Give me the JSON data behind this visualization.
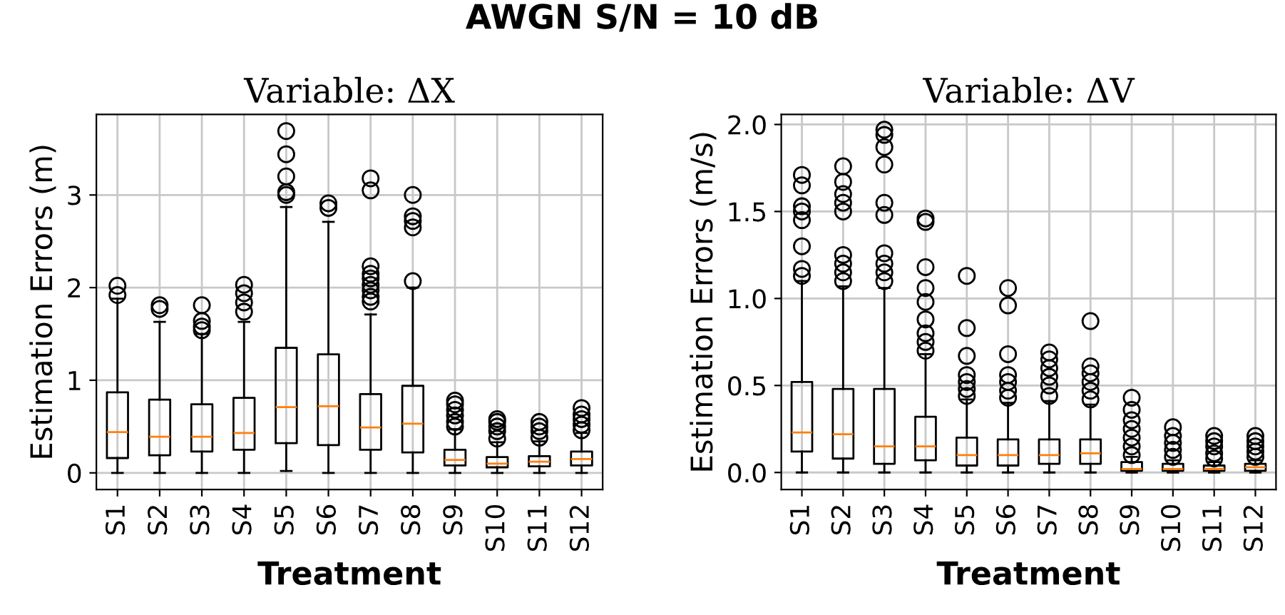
{
  "chart_data": [
    {
      "type": "box",
      "title": "Variable: ΔX",
      "annotations": [
        "AWGN S/N = 10 dB"
      ],
      "xlabel": "Treatment",
      "ylabel": "Estimation Errors (m)",
      "categories": [
        "S1",
        "S2",
        "S3",
        "S4",
        "S5",
        "S6",
        "S7",
        "S8",
        "S9",
        "S10",
        "S11",
        "S12"
      ],
      "ylim": [
        -0.18,
        3.87
      ],
      "yticks": [
        0,
        1,
        2,
        3
      ],
      "grid": true,
      "color": "#000000",
      "boxes": [
        {
          "low": 0,
          "q1": 0.16,
          "median": 0.44,
          "q3": 0.87,
          "high": 1.88,
          "outliers": [
            1.92,
            2.02
          ]
        },
        {
          "low": 0,
          "q1": 0.19,
          "median": 0.39,
          "q3": 0.79,
          "high": 1.63,
          "outliers": [
            1.77,
            1.81
          ]
        },
        {
          "low": 0,
          "q1": 0.23,
          "median": 0.39,
          "q3": 0.74,
          "high": 1.5,
          "outliers": [
            1.54,
            1.58,
            1.64,
            1.81
          ]
        },
        {
          "low": 0,
          "q1": 0.25,
          "median": 0.43,
          "q3": 0.81,
          "high": 1.63,
          "outliers": [
            1.74,
            1.84,
            1.94,
            2.03
          ]
        },
        {
          "low": 0.02,
          "q1": 0.32,
          "median": 0.71,
          "q3": 1.35,
          "high": 2.87,
          "outliers": [
            3.0,
            3.03,
            3.2,
            3.44,
            3.69
          ]
        },
        {
          "low": 0,
          "q1": 0.3,
          "median": 0.72,
          "q3": 1.28,
          "high": 2.71,
          "outliers": [
            2.86,
            2.91
          ]
        },
        {
          "low": 0,
          "q1": 0.25,
          "median": 0.49,
          "q3": 0.85,
          "high": 1.71,
          "outliers": [
            1.85,
            1.9,
            1.97,
            2.03,
            2.1,
            2.15,
            2.23,
            3.05,
            3.18
          ]
        },
        {
          "low": 0,
          "q1": 0.22,
          "median": 0.53,
          "q3": 0.94,
          "high": 2.0,
          "outliers": [
            2.07,
            2.65,
            2.72,
            2.77,
            3.0
          ]
        },
        {
          "low": 0,
          "q1": 0.08,
          "median": 0.14,
          "q3": 0.25,
          "high": 0.47,
          "outliers": [
            0.5,
            0.55,
            0.62,
            0.68,
            0.74,
            0.78
          ]
        },
        {
          "low": 0,
          "q1": 0.06,
          "median": 0.1,
          "q3": 0.17,
          "high": 0.33,
          "outliers": [
            0.37,
            0.45,
            0.5,
            0.55,
            0.58
          ]
        },
        {
          "low": 0,
          "q1": 0.07,
          "median": 0.12,
          "q3": 0.18,
          "high": 0.34,
          "outliers": [
            0.38,
            0.45,
            0.5,
            0.55
          ]
        },
        {
          "low": 0,
          "q1": 0.08,
          "median": 0.15,
          "q3": 0.23,
          "high": 0.43,
          "outliers": [
            0.46,
            0.52,
            0.58,
            0.63,
            0.7
          ]
        }
      ]
    },
    {
      "type": "box",
      "title": "Variable: ΔV",
      "xlabel": "Treatment",
      "ylabel": "Estimation Errors (m/s)",
      "categories": [
        "S1",
        "S2",
        "S3",
        "S4",
        "S5",
        "S6",
        "S7",
        "S8",
        "S9",
        "S10",
        "S11",
        "S12"
      ],
      "ylim": [
        -0.098,
        2.058
      ],
      "yticks": [
        {
          "value": 0,
          "label": "0.0"
        },
        0.5,
        {
          "value": 1,
          "label": "1.0"
        },
        1.5,
        {
          "value": 2,
          "label": "2.0"
        }
      ],
      "grid": true,
      "color": "#000000",
      "boxes": [
        {
          "low": 0,
          "q1": 0.12,
          "median": 0.23,
          "q3": 0.52,
          "high": 1.1,
          "outliers": [
            1.13,
            1.17,
            1.3,
            1.45,
            1.5,
            1.53,
            1.65,
            1.71
          ]
        },
        {
          "low": 0,
          "q1": 0.08,
          "median": 0.22,
          "q3": 0.48,
          "high": 1.07,
          "outliers": [
            1.1,
            1.15,
            1.2,
            1.25,
            1.5,
            1.55,
            1.6,
            1.67,
            1.76
          ]
        },
        {
          "low": 0,
          "q1": 0.05,
          "median": 0.15,
          "q3": 0.48,
          "high": 1.06,
          "outliers": [
            1.1,
            1.15,
            1.2,
            1.26,
            1.48,
            1.55,
            1.77,
            1.87,
            1.94,
            1.97
          ]
        },
        {
          "low": 0,
          "q1": 0.07,
          "median": 0.15,
          "q3": 0.32,
          "high": 0.68,
          "outliers": [
            0.7,
            0.75,
            0.8,
            0.88,
            0.98,
            1.06,
            1.18,
            1.44,
            1.46
          ]
        },
        {
          "low": 0,
          "q1": 0.04,
          "median": 0.1,
          "q3": 0.2,
          "high": 0.42,
          "outliers": [
            0.44,
            0.48,
            0.52,
            0.56,
            0.67,
            0.83,
            1.13
          ]
        },
        {
          "low": 0,
          "q1": 0.04,
          "median": 0.1,
          "q3": 0.19,
          "high": 0.4,
          "outliers": [
            0.43,
            0.47,
            0.52,
            0.56,
            0.68,
            0.96,
            1.06
          ]
        },
        {
          "low": 0,
          "q1": 0.05,
          "median": 0.1,
          "q3": 0.19,
          "high": 0.41,
          "outliers": [
            0.44,
            0.5,
            0.55,
            0.6,
            0.65,
            0.69
          ]
        },
        {
          "low": 0,
          "q1": 0.05,
          "median": 0.11,
          "q3": 0.19,
          "high": 0.39,
          "outliers": [
            0.42,
            0.47,
            0.52,
            0.57,
            0.61,
            0.87
          ]
        },
        {
          "low": 0,
          "q1": 0.01,
          "median": 0.02,
          "q3": 0.06,
          "high": 0.09,
          "outliers": [
            0.1,
            0.15,
            0.2,
            0.25,
            0.3,
            0.36,
            0.43
          ]
        },
        {
          "low": 0,
          "q1": 0.01,
          "median": 0.02,
          "q3": 0.05,
          "high": 0.07,
          "outliers": [
            0.09,
            0.13,
            0.17,
            0.21,
            0.26
          ]
        },
        {
          "low": 0,
          "q1": 0.01,
          "median": 0.02,
          "q3": 0.04,
          "high": 0.06,
          "outliers": [
            0.08,
            0.11,
            0.15,
            0.18,
            0.21
          ]
        },
        {
          "low": 0,
          "q1": 0.01,
          "median": 0.03,
          "q3": 0.05,
          "high": 0.07,
          "outliers": [
            0.09,
            0.12,
            0.15,
            0.18,
            0.21
          ]
        }
      ]
    }
  ]
}
